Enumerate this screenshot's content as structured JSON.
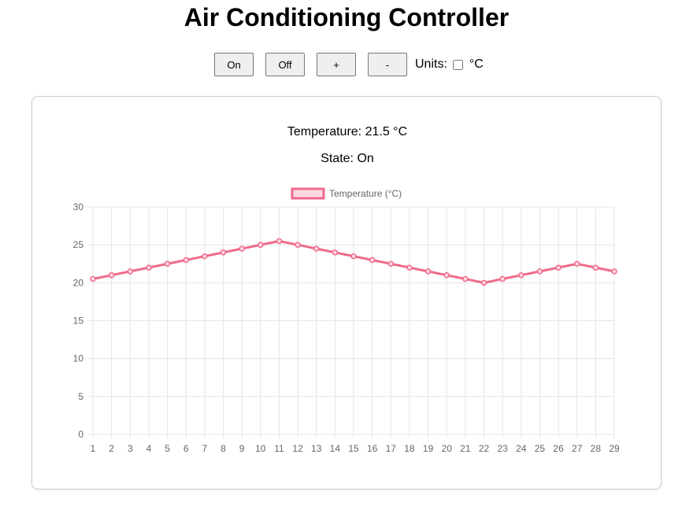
{
  "page": {
    "title": "Air Conditioning Controller"
  },
  "controls": {
    "on_label": "On",
    "off_label": "Off",
    "increase_label": "+",
    "decrease_label": "-",
    "units_label": "Units:",
    "units_checked": false,
    "units_value": "°C"
  },
  "status": {
    "temperature_label": "Temperature:",
    "temperature_value": "21.5",
    "temperature_unit": "°C",
    "state_label": "State:",
    "state_value": "On"
  },
  "colors": {
    "line": "#f06a8c",
    "fill": "#fcd8e1",
    "grid": "#e5e5e5",
    "tick_text": "#666666"
  },
  "chart_data": {
    "type": "line",
    "title": "",
    "xlabel": "",
    "ylabel": "",
    "legend": "top-center",
    "grid": true,
    "ylim": [
      0,
      30
    ],
    "y_ticks": [
      0,
      5,
      10,
      15,
      20,
      25,
      30
    ],
    "categories": [
      1,
      2,
      3,
      4,
      5,
      6,
      7,
      8,
      9,
      10,
      11,
      12,
      13,
      14,
      15,
      16,
      17,
      18,
      19,
      20,
      21,
      22,
      23,
      24,
      25,
      26,
      27,
      28,
      29
    ],
    "series": [
      {
        "name": "Temperature (°C)",
        "values": [
          20.5,
          21,
          21.5,
          22,
          22.5,
          23,
          23.5,
          24,
          24.5,
          25,
          25.5,
          25,
          24.5,
          24,
          23.5,
          23,
          22.5,
          22,
          21.5,
          21,
          20.5,
          20,
          20.5,
          21,
          21.5,
          22,
          22.5,
          22,
          21.5
        ]
      }
    ]
  }
}
